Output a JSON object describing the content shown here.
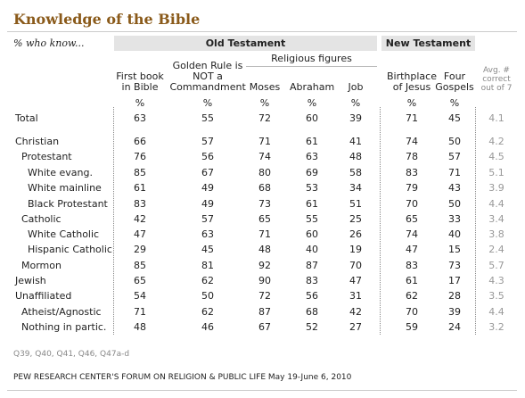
{
  "header": {
    "title": "Knowledge of the Bible",
    "subtitle": "% who know...",
    "groups": [
      "Old Testament",
      "New Testament"
    ],
    "subgroup": "Religious figures"
  },
  "table": {
    "columns": [
      "First book in Bible",
      "Golden Rule is NOT a Commandment",
      "Moses",
      "Abraham",
      "Job",
      "Birthplace of Jesus",
      "Four Gospels",
      "Avg. # correct out of 7"
    ],
    "units": [
      "%",
      "%",
      "%",
      "%",
      "%",
      "%",
      "%"
    ],
    "rows": [
      {
        "label": "Total",
        "values": [
          63,
          55,
          72,
          60,
          39,
          71,
          45,
          4.1
        ]
      },
      {
        "label": "Christian",
        "values": [
          66,
          57,
          71,
          61,
          41,
          74,
          50,
          4.2
        ]
      },
      {
        "label": "Protestant",
        "values": [
          76,
          56,
          74,
          63,
          48,
          78,
          57,
          4.5
        ]
      },
      {
        "label": "White evang.",
        "values": [
          85,
          67,
          80,
          69,
          58,
          83,
          71,
          5.1
        ]
      },
      {
        "label": "White mainline",
        "values": [
          61,
          49,
          68,
          53,
          34,
          79,
          43,
          3.9
        ]
      },
      {
        "label": "Black Protestant",
        "values": [
          83,
          49,
          73,
          61,
          51,
          70,
          50,
          4.4
        ]
      },
      {
        "label": "Catholic",
        "values": [
          42,
          57,
          65,
          55,
          25,
          65,
          33,
          3.4
        ]
      },
      {
        "label": "White Catholic",
        "values": [
          47,
          63,
          71,
          60,
          26,
          74,
          40,
          3.8
        ]
      },
      {
        "label": "Hispanic Catholic",
        "values": [
          29,
          45,
          48,
          40,
          19,
          47,
          15,
          2.4
        ]
      },
      {
        "label": "Mormon",
        "values": [
          85,
          81,
          92,
          87,
          70,
          83,
          73,
          5.7
        ]
      },
      {
        "label": "Jewish",
        "values": [
          65,
          62,
          90,
          83,
          47,
          61,
          17,
          4.3
        ]
      },
      {
        "label": "Unaffiliated",
        "values": [
          54,
          50,
          72,
          56,
          31,
          62,
          28,
          3.5
        ]
      },
      {
        "label": "Atheist/Agnostic",
        "values": [
          71,
          62,
          87,
          68,
          42,
          70,
          39,
          4.4
        ]
      },
      {
        "label": "Nothing in partic.",
        "values": [
          48,
          46,
          67,
          52,
          27,
          59,
          24,
          3.2
        ]
      }
    ]
  },
  "footer": {
    "questions": "Q39, Q40, Q41, Q46, Q47a-d",
    "source": "PEW RESEARCH CENTER'S FORUM ON RELIGION & PUBLIC LIFE",
    "dates": "May 19-June 6, 2010"
  }
}
